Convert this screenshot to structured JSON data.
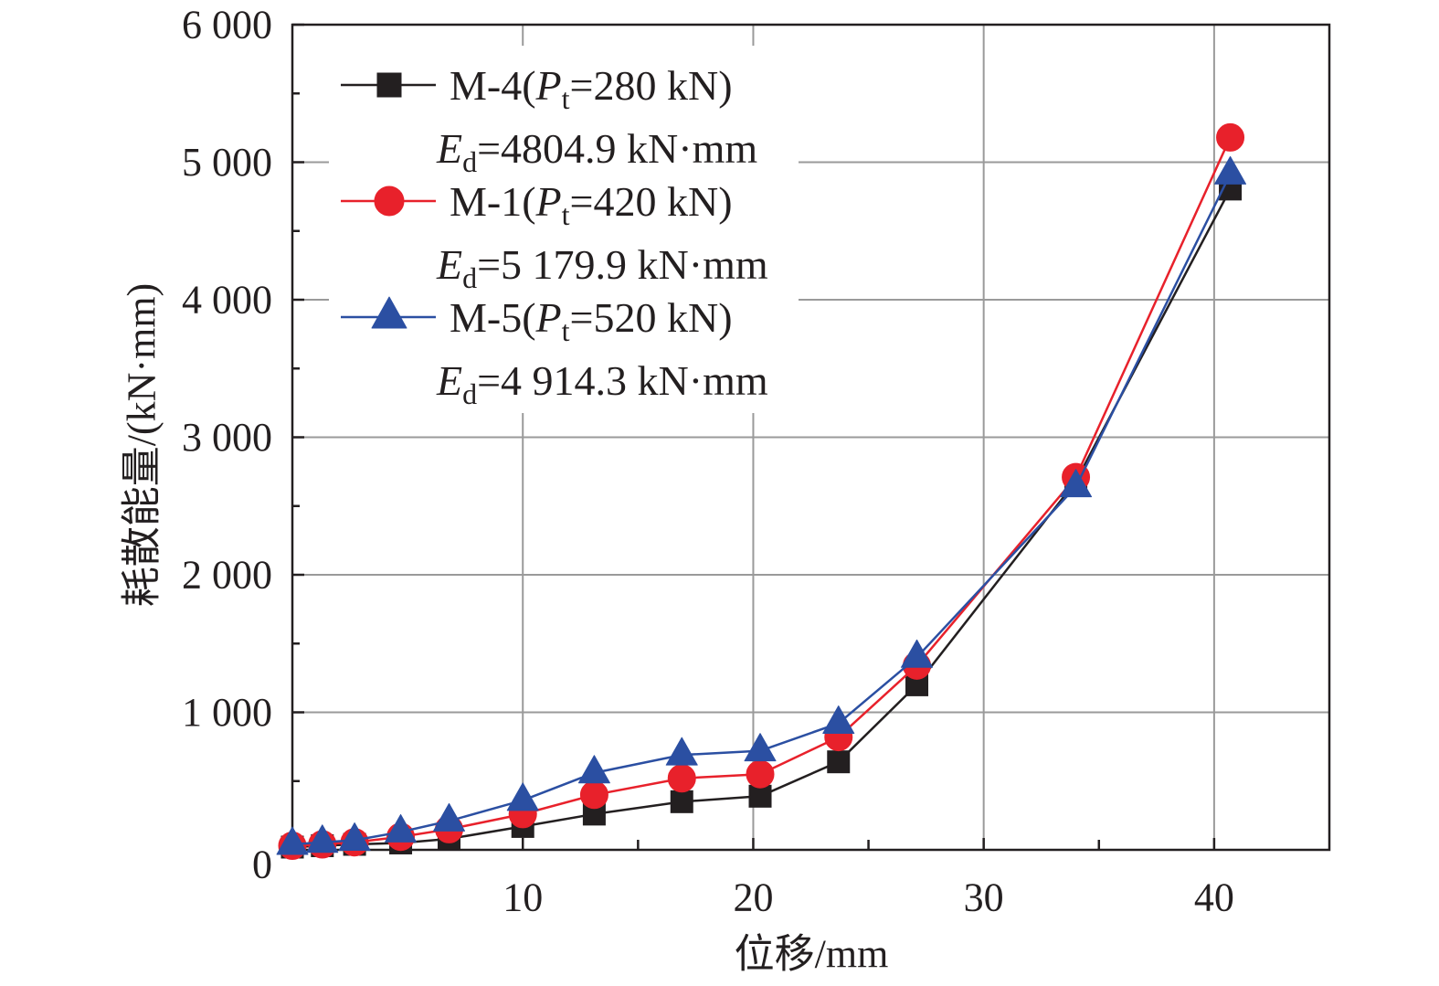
{
  "chart_data": {
    "type": "line",
    "xlabel": "位移/mm",
    "ylabel": "耗散能量/(kN·mm)",
    "xlim": [
      0,
      45
    ],
    "ylim": [
      0,
      6000
    ],
    "xticks": [
      10,
      20,
      30,
      40
    ],
    "xtick_labels": [
      "10",
      "20",
      "30",
      "40"
    ],
    "yticks": [
      0,
      1000,
      2000,
      3000,
      4000,
      5000,
      6000
    ],
    "ytick_labels": [
      "0",
      "1 000",
      "2 000",
      "3 000",
      "4 000",
      "5 000",
      "6 000"
    ],
    "grid": true,
    "legend_position": "top-left",
    "x": [
      0,
      1.3,
      2.7,
      4.7,
      6.8,
      10.0,
      13.1,
      16.9,
      20.3,
      23.7,
      27.1,
      34.0,
      40.7
    ],
    "series": [
      {
        "name": "M-4(Pt=280 kN)",
        "annotation": "Ed=4804.9 kN·mm",
        "color": "#231f20",
        "marker": "square",
        "values": [
          20,
          30,
          40,
          50,
          80,
          170,
          260,
          350,
          390,
          640,
          1200,
          2680,
          4804.9
        ]
      },
      {
        "name": "M-1(Pt=420 kN)",
        "annotation": "Ed=5 179.9 kN·mm",
        "color": "#e8212b",
        "marker": "circle",
        "values": [
          30,
          40,
          55,
          95,
          150,
          260,
          400,
          520,
          550,
          820,
          1340,
          2710,
          5179.9
        ]
      },
      {
        "name": "M-5(Pt=520 kN)",
        "annotation": "Ed=4 914.3 kN·mm",
        "color": "#2b4fa2",
        "marker": "triangle",
        "values": [
          40,
          55,
          70,
          130,
          210,
          360,
          560,
          690,
          720,
          920,
          1400,
          2640,
          4914.3
        ]
      }
    ]
  }
}
